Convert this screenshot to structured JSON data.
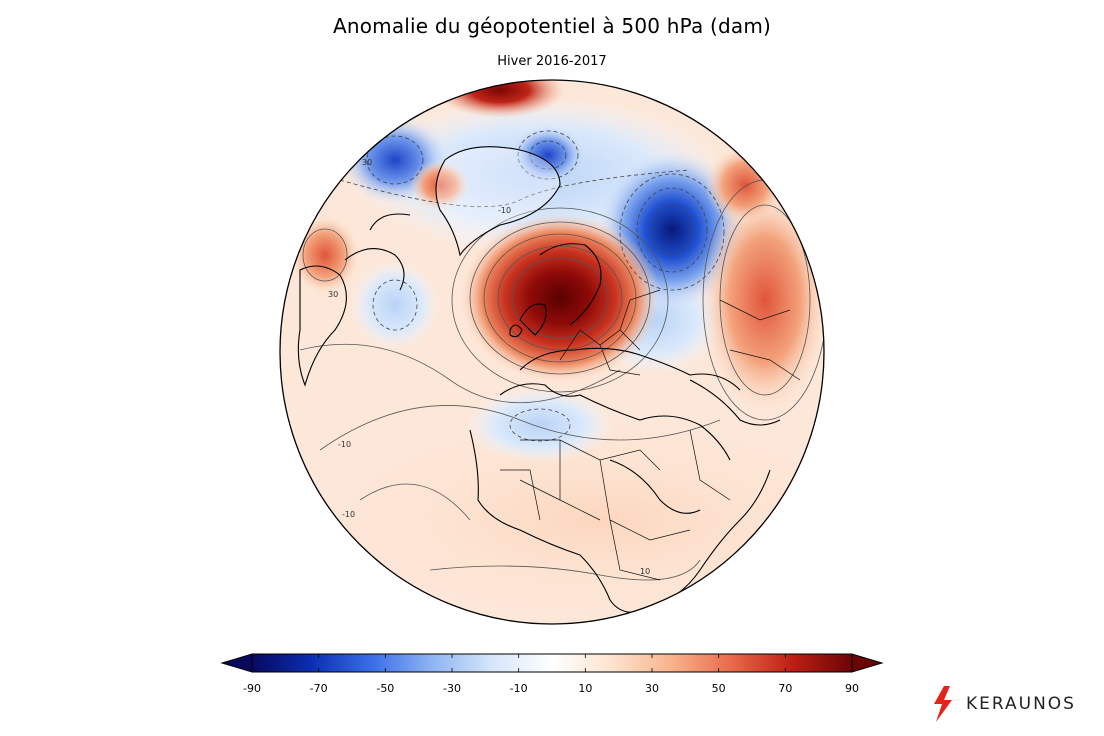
{
  "title": "Anomalie du géopotentiel à 500 hPa (dam)",
  "subtitle": "Hiver 2016-2017",
  "colorbar": {
    "min": -90,
    "max": 90,
    "tick_labels": [
      "-90",
      "-70",
      "-50",
      "-30",
      "-10",
      "10",
      "30",
      "50",
      "70",
      "90"
    ],
    "extend": "both",
    "colors": [
      "#08085e",
      "#0b2fb3",
      "#3a6ee8",
      "#8fb4f3",
      "#d6e6fb",
      "#ffffff",
      "#fde3cf",
      "#f8b38c",
      "#e8694a",
      "#c01e14",
      "#6b0505"
    ]
  },
  "map_labels": {
    "contour_label_pos": "10",
    "contour_label_neg": "-10",
    "contour_label_30": "30"
  },
  "logo": {
    "text": "KERAUNOS",
    "accent": "#e2231a"
  }
}
